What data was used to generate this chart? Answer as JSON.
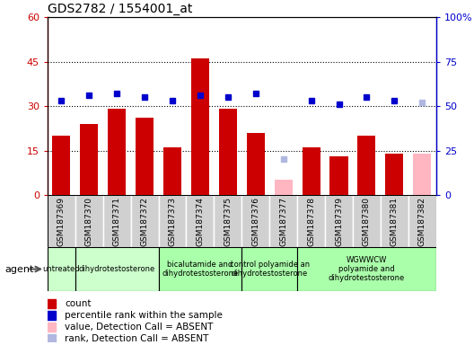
{
  "title": "GDS2782 / 1554001_at",
  "samples": [
    "GSM187369",
    "GSM187370",
    "GSM187371",
    "GSM187372",
    "GSM187373",
    "GSM187374",
    "GSM187375",
    "GSM187376",
    "GSM187377",
    "GSM187378",
    "GSM187379",
    "GSM187380",
    "GSM187381",
    "GSM187382"
  ],
  "bar_values": [
    20,
    24,
    29,
    26,
    16,
    46,
    29,
    21,
    null,
    16,
    13,
    20,
    14,
    null
  ],
  "bar_absent_values": [
    null,
    null,
    null,
    null,
    null,
    null,
    null,
    null,
    5,
    null,
    null,
    null,
    null,
    14
  ],
  "dot_values": [
    53,
    56,
    57,
    55,
    53,
    56,
    55,
    57,
    null,
    53,
    51,
    55,
    53,
    null
  ],
  "dot_absent_values": [
    null,
    null,
    null,
    null,
    null,
    null,
    null,
    null,
    20,
    null,
    null,
    null,
    null,
    52
  ],
  "bar_color": "#cc0000",
  "bar_absent_color": "#ffb6c1",
  "dot_color": "#0000cc",
  "dot_absent_color": "#b0b8e0",
  "ylim_left": [
    0,
    60
  ],
  "ylim_right": [
    0,
    100
  ],
  "yticks_left": [
    0,
    15,
    30,
    45,
    60
  ],
  "ytick_labels_left": [
    "0",
    "15",
    "30",
    "45",
    "60"
  ],
  "ytick_labels_right": [
    "0",
    "25",
    "50",
    "75",
    "100%"
  ],
  "groups": [
    {
      "label": "untreated",
      "start": 0,
      "end": 1,
      "color": "#ccffcc"
    },
    {
      "label": "dihydrotestosterone",
      "start": 1,
      "end": 4,
      "color": "#ccffcc"
    },
    {
      "label": "bicalutamide and\ndihydrotestosterone",
      "start": 4,
      "end": 7,
      "color": "#aaffaa"
    },
    {
      "label": "control polyamide an\ndihydrotestosterone",
      "start": 7,
      "end": 9,
      "color": "#aaffaa"
    },
    {
      "label": "WGWWCW\npolyamide and\ndihydrotestosterone",
      "start": 9,
      "end": 14,
      "color": "#aaffaa"
    }
  ],
  "agent_label": "agent",
  "plot_bg": "#ffffff",
  "sample_bg": "#d0d0d0",
  "dotted_lines": [
    15,
    30,
    45
  ],
  "legend_items": [
    {
      "label": "count",
      "color": "#cc0000"
    },
    {
      "label": "percentile rank within the sample",
      "color": "#0000cc"
    },
    {
      "label": "value, Detection Call = ABSENT",
      "color": "#ffb6c1"
    },
    {
      "label": "rank, Detection Call = ABSENT",
      "color": "#b0b8e0"
    }
  ]
}
